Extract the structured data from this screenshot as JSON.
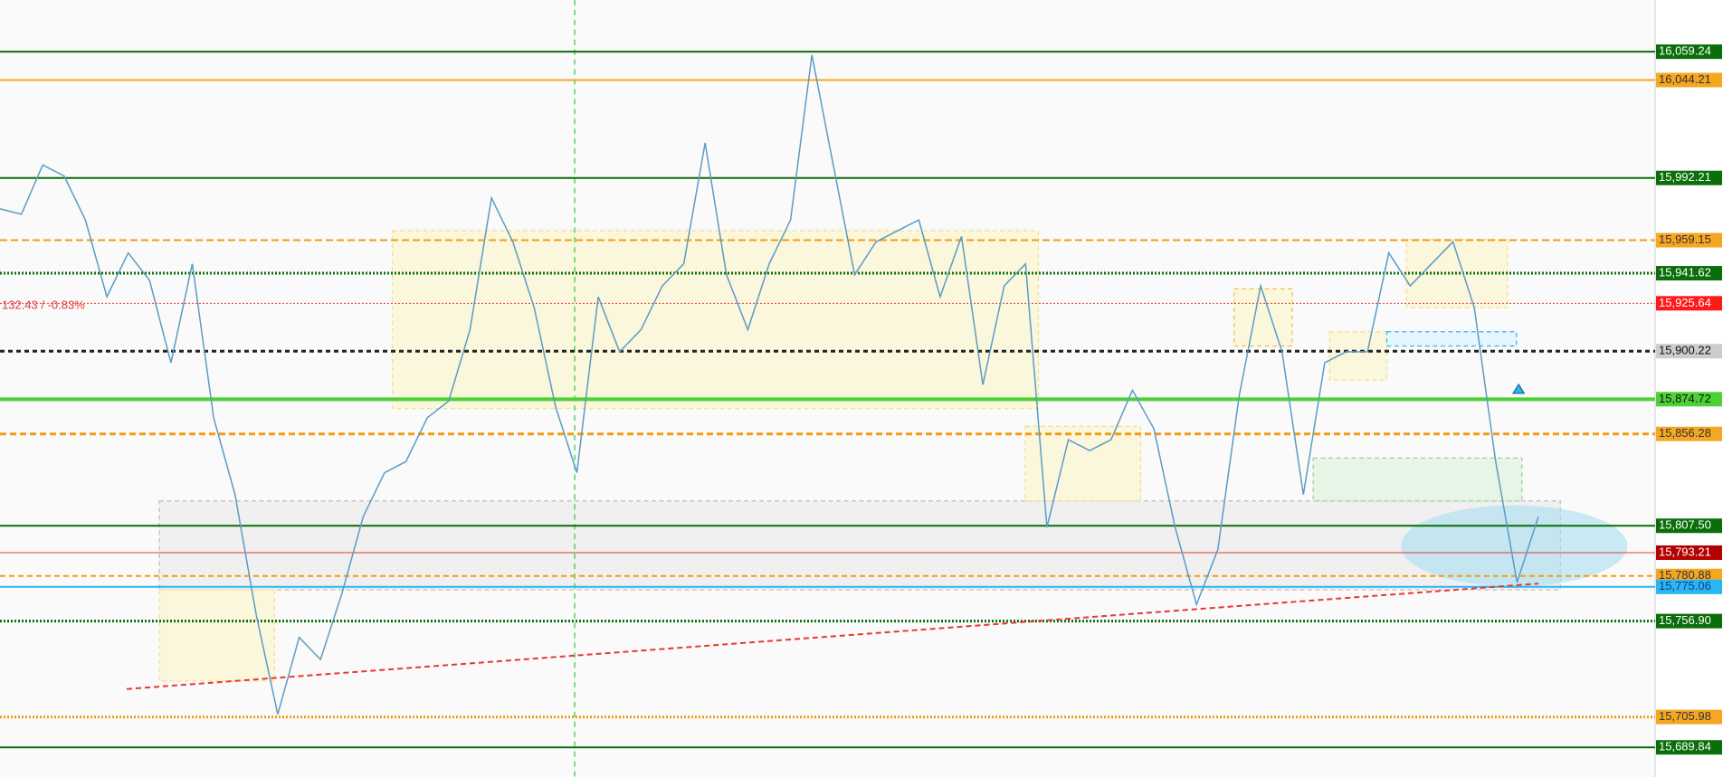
{
  "chart_data": {
    "type": "line",
    "annotation": "132.43 / -0.83%",
    "ylim": [
      15674.1,
      16086.7
    ],
    "series": [
      {
        "color": "#5b9bc4",
        "values": [
          15975.8,
          15972.9,
          15999.1,
          15993.3,
          15969.9,
          15929.1,
          15952.4,
          15937.8,
          15894.1,
          15946.6,
          15864.9,
          15824.1,
          15759.9,
          15707.4,
          15748.2,
          15736.5,
          15771.5,
          15812.4,
          15835.7,
          15841.6,
          15864.9,
          15873.7,
          15911.6,
          15981.6,
          15958.3,
          15923.3,
          15870.8,
          15835.7,
          15929.1,
          15899.9,
          15911.6,
          15934.9,
          15946.6,
          16010.8,
          15940.8,
          15911.6,
          15946.6,
          15969.9,
          16057.5,
          15999.1,
          15940.8,
          15958.3,
          15964.1,
          15969.9,
          15929.1,
          15961.2,
          15882.4,
          15934.9,
          15946.6,
          15806.6,
          15853.2,
          15847.4,
          15853.2,
          15879.5,
          15859.1,
          15806.6,
          15765.7,
          15794.9,
          15876.6,
          15934.9,
          15899.9,
          15824.1,
          15894.1,
          15899.9,
          15899.9,
          15952.4,
          15934.9,
          15946.6,
          15958.3,
          15923.3,
          15841.6,
          15777.4,
          15812.4
        ]
      }
    ],
    "trendline": {
      "color": "#e53935",
      "values": [
        15720.8,
        15776.8
      ]
    },
    "levels": [
      {
        "value": 16059.24,
        "label": "16,059.24",
        "color": "#0a6e0a",
        "dash": "none",
        "width": 2,
        "label_bg": "#0a6e0a",
        "label_color": "#ffffff"
      },
      {
        "value": 16044.21,
        "label": "16,044.21",
        "color": "#f5a623",
        "dash": "none",
        "width": 2,
        "label_bg": "#f5a623",
        "label_color": "#333333"
      },
      {
        "value": 15992.21,
        "label": "15,992.21",
        "color": "#0a6e0a",
        "dash": "none",
        "width": 2,
        "label_bg": "#0a6e0a",
        "label_color": "#ffffff"
      },
      {
        "value": 15959.15,
        "label": "15,959.15",
        "color": "#f39c12",
        "dash": "8 4",
        "width": 2,
        "label_bg": "#f5a623",
        "label_color": "#333333"
      },
      {
        "value": 15941.62,
        "label": "15,941.62",
        "color": "#0a6e0a",
        "dash": "2 2",
        "width": 3,
        "label_bg": "#0a6e0a",
        "label_color": "#ffffff"
      },
      {
        "value": 15925.64,
        "label": "15,925.64",
        "color": "#e53935",
        "dash": "2 2",
        "width": 1,
        "label_bg": "#ff1a1a",
        "label_color": "#ffffff"
      },
      {
        "value": 15900.22,
        "label": "15,900.22",
        "color": "#222222",
        "dash": "5 4",
        "width": 3,
        "label_bg": "#cccccc",
        "label_color": "#111111"
      },
      {
        "value": 15874.72,
        "label": "15,874.72",
        "color": "#4cd137",
        "dash": "none",
        "width": 4,
        "label_bg": "#4cd137",
        "label_color": "#111111"
      },
      {
        "value": 15856.28,
        "label": "15,856.28",
        "color": "#f39c12",
        "dash": "7 4",
        "width": 3,
        "label_bg": "#f5a623",
        "label_color": "#333333"
      },
      {
        "value": 15807.5,
        "label": "15,807.50",
        "color": "#0a6e0a",
        "dash": "none",
        "width": 2,
        "label_bg": "#0a6e0a",
        "label_color": "#ffffff"
      },
      {
        "value": 15793.21,
        "label": "15,793.21",
        "color": "#e53935",
        "dash": "none",
        "width": 1,
        "label_bg": "#b30000",
        "label_color": "#ffffff"
      },
      {
        "value": 15780.88,
        "label": "15,780.88",
        "color": "#f39c12",
        "dash": "6 4",
        "width": 2,
        "label_bg": "#f5a623",
        "label_color": "#333333"
      },
      {
        "value": 15775.06,
        "label": "15,775.06",
        "color": "#29b6f6",
        "dash": "none",
        "width": 2,
        "label_bg": "#29b6f6",
        "label_color": "#1a3a7a"
      },
      {
        "value": 15756.9,
        "label": "15,756.90",
        "color": "#0a6e0a",
        "dash": "2 2",
        "width": 3,
        "label_bg": "#0a6e0a",
        "label_color": "#ffffff"
      },
      {
        "value": 15705.98,
        "label": "15,705.98",
        "color": "#f39c12",
        "dash": "2 2",
        "width": 3,
        "label_bg": "#f5a623",
        "label_color": "#333333"
      },
      {
        "value": 15689.84,
        "label": "15,689.84",
        "color": "#0a6e0a",
        "dash": "none",
        "width": 2,
        "label_bg": "#0a6e0a",
        "label_color": "#ffffff"
      }
    ]
  }
}
